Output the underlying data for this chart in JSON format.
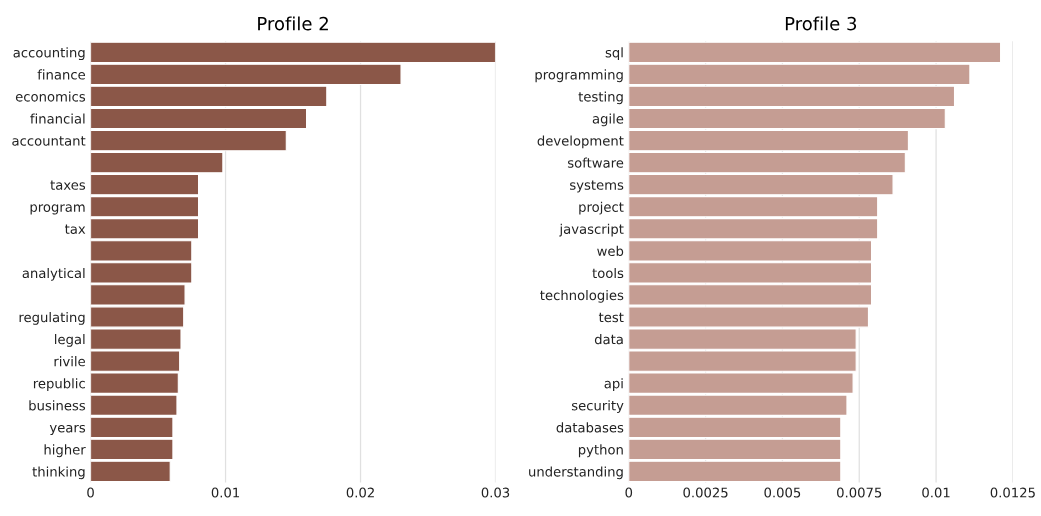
{
  "chart_data": [
    {
      "type": "bar",
      "title": "Profile 2",
      "orientation": "horizontal",
      "grid": "x",
      "categories": [
        "accounting",
        "finance",
        "economics",
        "financial",
        "accountant",
        null,
        "taxes",
        "program",
        "tax",
        null,
        "analytical",
        null,
        "regulating",
        "legal",
        "rivile",
        "republic",
        "business",
        "years",
        "higher",
        "thinking"
      ],
      "series": [
        {
          "color": "#8b5748",
          "values": [
            0.03,
            0.023,
            0.0175,
            0.016,
            0.0145,
            0.0098,
            0.008,
            0.008,
            0.008,
            0.0075,
            0.0075,
            0.007,
            0.0069,
            0.0067,
            0.0066,
            0.0065,
            0.0064,
            0.0061,
            0.0061,
            0.0059
          ]
        }
      ],
      "xlim": [
        0,
        0.03
      ],
      "xticks": [
        0,
        0.01,
        0.02,
        0.03
      ]
    },
    {
      "type": "bar",
      "title": "Profile 3",
      "orientation": "horizontal",
      "grid": "x",
      "categories": [
        "sql",
        "programming",
        "testing",
        "agile",
        "development",
        "software",
        "systems",
        "project",
        "javascript",
        "web",
        "tools",
        "technologies",
        "test",
        "data",
        null,
        "api",
        "security",
        "databases",
        "python",
        "understanding"
      ],
      "series": [
        {
          "color": "#c59d93",
          "values": [
            0.0121,
            0.0111,
            0.0106,
            0.0103,
            0.0091,
            0.009,
            0.0086,
            0.0081,
            0.0081,
            0.0079,
            0.0079,
            0.0079,
            0.0078,
            0.0074,
            0.0074,
            0.0073,
            0.0071,
            0.0069,
            0.0069,
            0.0069
          ]
        }
      ],
      "xlim": [
        0,
        0.0125
      ],
      "xticks": [
        0,
        0.0025,
        0.005,
        0.0075,
        0.01,
        0.0125
      ]
    }
  ]
}
